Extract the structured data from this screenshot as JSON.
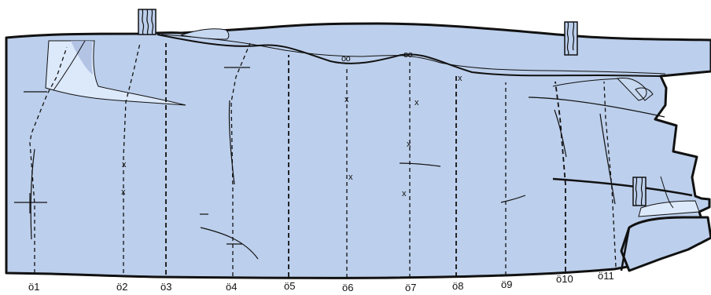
{
  "diagram": {
    "fill_color": "#bccfec",
    "light_fill_color": "#dce9fb",
    "highlight_color": "#a9b9de",
    "line_color": "#111111"
  },
  "sections": {
    "o1": "ö1",
    "o2": "ö2",
    "o3": "ö3",
    "o4": "ö4",
    "o5": "ö5",
    "o6": "ö6",
    "o7": "ö7",
    "o8": "ö8",
    "o9": "ö9",
    "o10": "ö10",
    "o11": "ö11"
  },
  "marks": {
    "cross": "x",
    "double_circle": "oo"
  },
  "icons": {
    "post": "post-icon",
    "wave": "wave-pattern-icon"
  }
}
